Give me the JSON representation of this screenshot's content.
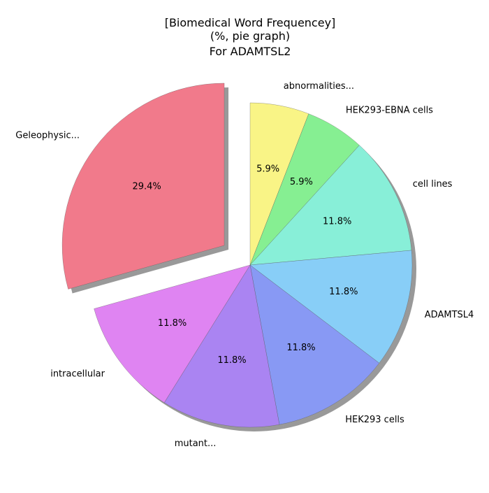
{
  "chart_data": {
    "type": "pie",
    "title": [
      "[Biomedical Word Frequencey]",
      "(%, pie graph)",
      "For ADAMTSL2"
    ],
    "slices": [
      {
        "label": "abnormalities...",
        "value": 5.9,
        "pct_label": "5.9%",
        "color": "#f9f486",
        "explode": false
      },
      {
        "label": "HEK293-EBNA cells",
        "value": 5.9,
        "pct_label": "5.9%",
        "color": "#86ef92",
        "explode": false
      },
      {
        "label": "cell lines",
        "value": 11.8,
        "pct_label": "11.8%",
        "color": "#88efd8",
        "explode": false
      },
      {
        "label": "ADAMTSL4",
        "value": 11.8,
        "pct_label": "11.8%",
        "color": "#88cef7",
        "explode": false
      },
      {
        "label": "HEK293 cells",
        "value": 11.8,
        "pct_label": "11.8%",
        "color": "#8899f4",
        "explode": false
      },
      {
        "label": "mutant...",
        "value": 11.8,
        "pct_label": "11.8%",
        "color": "#aa84f2",
        "explode": false
      },
      {
        "label": "intracellular",
        "value": 11.8,
        "pct_label": "11.8%",
        "color": "#df84f2",
        "explode": false
      },
      {
        "label": "Geleophysic...",
        "value": 29.4,
        "pct_label": "29.4%",
        "color": "#f17a8b",
        "explode": true
      }
    ],
    "start_angle_deg": 90,
    "direction": "clockwise",
    "shadow": true,
    "legend": "none"
  }
}
